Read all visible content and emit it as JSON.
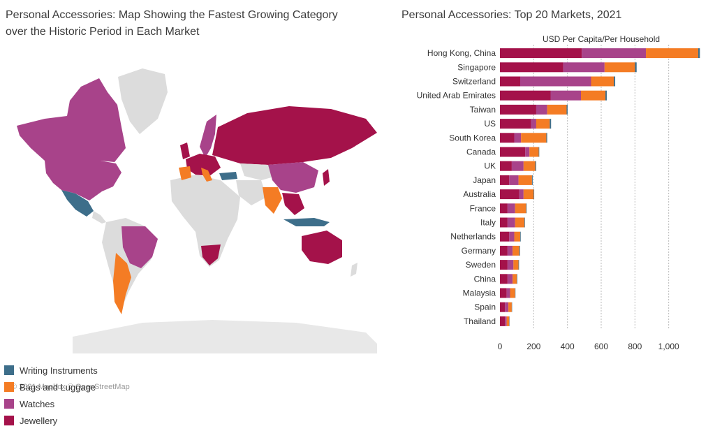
{
  "map": {
    "title_line1": "Personal Accessories: Map Showing the Fastest Growing Category",
    "title_line2": "over the Historic Period in Each Market",
    "attribution": "© 2021 Mapbox © OpenStreetMap",
    "legend": [
      {
        "label": "Writing Instruments",
        "color": "#3d6e8a"
      },
      {
        "label": "Bags and Luggage",
        "color": "#f47c24"
      },
      {
        "label": "Watches",
        "color": "#a8438a"
      },
      {
        "label": "Jewellery",
        "color": "#a4124a"
      }
    ]
  },
  "chart_data": {
    "type": "bar",
    "orientation": "horizontal",
    "stacked": true,
    "title": "Personal Accessories: Top 20 Markets, 2021",
    "xlabel": "USD Per Capita/Per Household",
    "xlim": [
      0,
      1200
    ],
    "xticks": [
      0,
      200,
      400,
      600,
      800,
      1000
    ],
    "xtick_labels": [
      "0",
      "200",
      "400",
      "600",
      "800",
      "1,000"
    ],
    "grid": "vertical dashed",
    "categories": [
      "Hong Kong, China",
      "Singapore",
      "Switzerland",
      "United Arab Emirates",
      "Taiwan",
      "US",
      "South Korea",
      "Canada",
      "UK",
      "Japan",
      "Australia",
      "France",
      "Italy",
      "Netherlands",
      "Germany",
      "Sweden",
      "China",
      "Malaysia",
      "Spain",
      "Thailand"
    ],
    "series": [
      {
        "name": "Jewellery",
        "color": "#a4124a",
        "values": [
          485,
          375,
          120,
          300,
          215,
          185,
          85,
          150,
          70,
          55,
          115,
          45,
          45,
          55,
          45,
          45,
          45,
          40,
          30,
          30
        ]
      },
      {
        "name": "Watches",
        "color": "#a8438a",
        "values": [
          380,
          245,
          420,
          180,
          65,
          30,
          40,
          25,
          70,
          55,
          25,
          45,
          45,
          30,
          30,
          35,
          30,
          20,
          20,
          10
        ]
      },
      {
        "name": "Bags and Luggage",
        "color": "#f47c24",
        "values": [
          310,
          180,
          135,
          145,
          115,
          80,
          150,
          55,
          70,
          80,
          60,
          65,
          55,
          35,
          40,
          30,
          25,
          30,
          20,
          15
        ]
      },
      {
        "name": "Writing Instruments",
        "color": "#3d6e8a",
        "values": [
          10,
          10,
          8,
          8,
          6,
          8,
          5,
          3,
          5,
          4,
          3,
          3,
          3,
          3,
          4,
          3,
          3,
          2,
          2,
          2
        ]
      }
    ]
  }
}
